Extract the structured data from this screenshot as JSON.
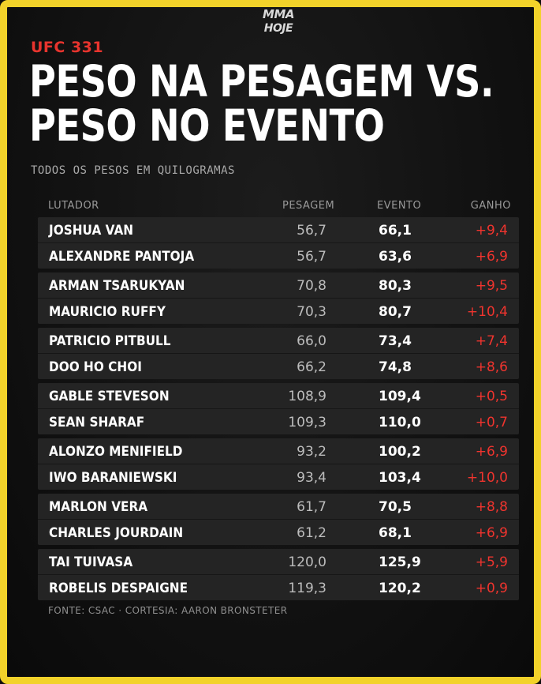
{
  "brand": {
    "logo_line1": "MMA",
    "logo_line2": "HOJE"
  },
  "event": "UFC 331",
  "title_line1": "PESO NA PESAGEM VS.",
  "title_line2": "PESO NO EVENTO",
  "subtitle": "TODOS OS PESOS EM QUILOGRAMAS",
  "columns": {
    "fighter": "LUTADOR",
    "weigh_in": "PESAGEM",
    "event": "EVENTO",
    "gain": "GANHO"
  },
  "bouts": [
    {
      "fighters": [
        {
          "name": "JOSHUA VAN",
          "weigh_in": "56,7",
          "event": "66,1",
          "gain": "+9,4"
        },
        {
          "name": "ALEXANDRE PANTOJA",
          "weigh_in": "56,7",
          "event": "63,6",
          "gain": "+6,9"
        }
      ]
    },
    {
      "fighters": [
        {
          "name": "ARMAN TSARUKYAN",
          "weigh_in": "70,8",
          "event": "80,3",
          "gain": "+9,5"
        },
        {
          "name": "MAURICIO RUFFY",
          "weigh_in": "70,3",
          "event": "80,7",
          "gain": "+10,4"
        }
      ]
    },
    {
      "fighters": [
        {
          "name": "PATRICIO PITBULL",
          "weigh_in": "66,0",
          "event": "73,4",
          "gain": "+7,4"
        },
        {
          "name": "DOO HO CHOI",
          "weigh_in": "66,2",
          "event": "74,8",
          "gain": "+8,6"
        }
      ]
    },
    {
      "fighters": [
        {
          "name": "GABLE STEVESON",
          "weigh_in": "108,9",
          "event": "109,4",
          "gain": "+0,5"
        },
        {
          "name": "SEAN SHARAF",
          "weigh_in": "109,3",
          "event": "110,0",
          "gain": "+0,7"
        }
      ]
    },
    {
      "fighters": [
        {
          "name": "ALONZO MENIFIELD",
          "weigh_in": "93,2",
          "event": "100,2",
          "gain": "+6,9"
        },
        {
          "name": "IWO BARANIEWSKI",
          "weigh_in": "93,4",
          "event": "103,4",
          "gain": "+10,0"
        }
      ]
    },
    {
      "fighters": [
        {
          "name": "MARLON VERA",
          "weigh_in": "61,7",
          "event": "70,5",
          "gain": "+8,8"
        },
        {
          "name": "CHARLES JOURDAIN",
          "weigh_in": "61,2",
          "event": "68,1",
          "gain": "+6,9"
        }
      ]
    },
    {
      "fighters": [
        {
          "name": "TAI TUIVASA",
          "weigh_in": "120,0",
          "event": "125,9",
          "gain": "+5,9"
        },
        {
          "name": "ROBELIS DESPAIGNE",
          "weigh_in": "119,3",
          "event": "120,2",
          "gain": "+0,9"
        }
      ]
    }
  ],
  "source": "FONTE: CSAC · CORTESIA: AARON BRONSTETER",
  "colors": {
    "border": "#f2d22a",
    "accent": "#e8342e",
    "background": "#121212",
    "row": "#242424"
  }
}
